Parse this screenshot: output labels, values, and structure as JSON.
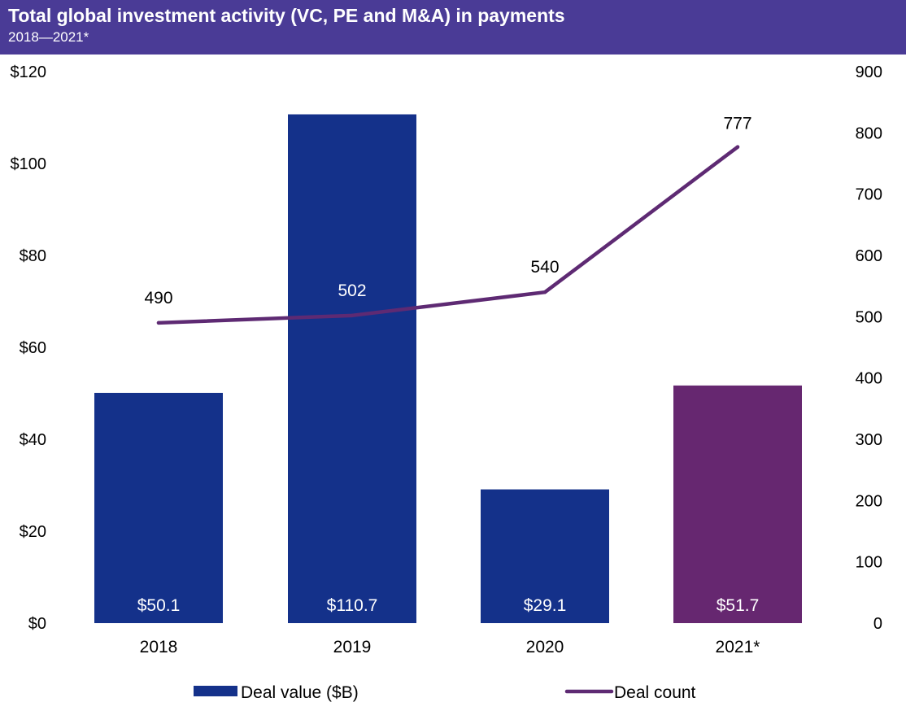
{
  "header": {
    "title": "Total global investment activity (VC, PE and M&A) in payments",
    "subtitle": "2018—2021*"
  },
  "colors": {
    "header_bg": "#4a3b96",
    "bar_default": "#14318a",
    "bar_highlight": "#662770",
    "line": "#5e2a73"
  },
  "chart_data": {
    "type": "bar+line",
    "title": "Total global investment activity (VC, PE and M&A) in payments",
    "subtitle": "2018—2021*",
    "categories": [
      "2018",
      "2019",
      "2020",
      "2021*"
    ],
    "series": [
      {
        "name": "Deal value ($B)",
        "type": "bar",
        "axis": "left",
        "values": [
          50.1,
          110.7,
          29.1,
          51.7
        ],
        "labels": [
          "$50.1",
          "$110.7",
          "$29.1",
          "$51.7"
        ]
      },
      {
        "name": "Deal count",
        "type": "line",
        "axis": "right",
        "values": [
          490,
          502,
          540,
          777
        ],
        "labels": [
          "490",
          "502",
          "540",
          "777"
        ]
      }
    ],
    "left_axis": {
      "range": [
        0,
        120
      ],
      "ticks": [
        0,
        20,
        40,
        60,
        80,
        100,
        120
      ],
      "tick_labels": [
        "$0",
        "$20",
        "$40",
        "$60",
        "$80",
        "$100",
        "$120"
      ]
    },
    "right_axis": {
      "range": [
        0,
        900
      ],
      "ticks": [
        0,
        100,
        200,
        300,
        400,
        500,
        600,
        700,
        800,
        900
      ],
      "tick_labels": [
        "0",
        "100",
        "200",
        "300",
        "400",
        "500",
        "600",
        "700",
        "800",
        "900"
      ]
    },
    "grid": false,
    "legend_position": "bottom"
  }
}
